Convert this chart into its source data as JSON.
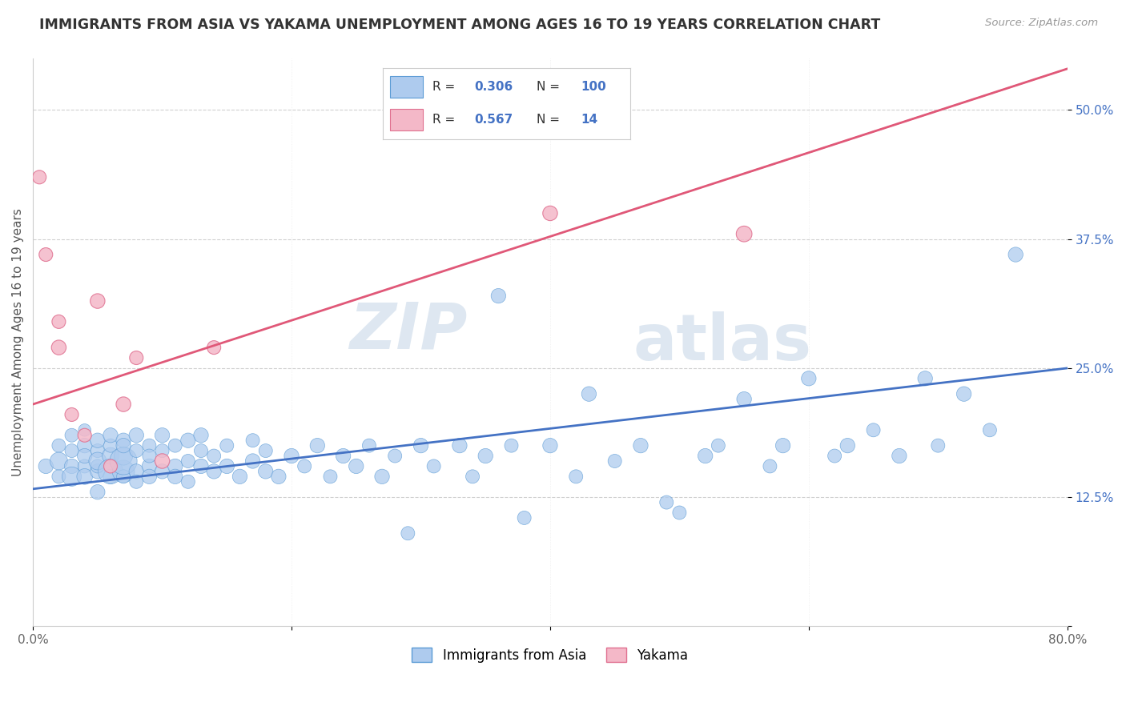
{
  "title": "IMMIGRANTS FROM ASIA VS YAKAMA UNEMPLOYMENT AMONG AGES 16 TO 19 YEARS CORRELATION CHART",
  "source": "Source: ZipAtlas.com",
  "ylabel": "Unemployment Among Ages 16 to 19 years",
  "xlim": [
    0.0,
    0.8
  ],
  "ylim": [
    0.0,
    0.55
  ],
  "xticks": [
    0.0,
    0.2,
    0.4,
    0.6,
    0.8
  ],
  "xticklabels": [
    "0.0%",
    "",
    "",
    "",
    "80.0%"
  ],
  "yticks": [
    0.0,
    0.125,
    0.25,
    0.375,
    0.5
  ],
  "yticklabels": [
    "",
    "12.5%",
    "25.0%",
    "37.5%",
    "50.0%"
  ],
  "blue_R": 0.306,
  "blue_N": 100,
  "pink_R": 0.567,
  "pink_N": 14,
  "watermark_zip": "ZIP",
  "watermark_atlas": "atlas",
  "blue_color": "#aecbee",
  "blue_edge_color": "#5b9bd5",
  "blue_line_color": "#4472c4",
  "pink_color": "#f4b8c8",
  "pink_edge_color": "#e07090",
  "pink_line_color": "#e05878",
  "legend_label_blue": "Immigrants from Asia",
  "legend_label_pink": "Yakama",
  "blue_line_x0": 0.0,
  "blue_line_y0": 0.133,
  "blue_line_x1": 0.8,
  "blue_line_y1": 0.25,
  "pink_line_x0": 0.0,
  "pink_line_y0": 0.215,
  "pink_line_x1": 0.8,
  "pink_line_y1": 0.54,
  "background_color": "#ffffff",
  "grid_color": "#d0d0d0",
  "blue_scatter_x": [
    0.01,
    0.02,
    0.02,
    0.02,
    0.03,
    0.03,
    0.03,
    0.03,
    0.04,
    0.04,
    0.04,
    0.04,
    0.04,
    0.05,
    0.05,
    0.05,
    0.05,
    0.05,
    0.05,
    0.06,
    0.06,
    0.06,
    0.06,
    0.06,
    0.07,
    0.07,
    0.07,
    0.07,
    0.07,
    0.07,
    0.08,
    0.08,
    0.08,
    0.08,
    0.09,
    0.09,
    0.09,
    0.09,
    0.1,
    0.1,
    0.1,
    0.11,
    0.11,
    0.11,
    0.12,
    0.12,
    0.12,
    0.13,
    0.13,
    0.13,
    0.14,
    0.14,
    0.15,
    0.15,
    0.16,
    0.17,
    0.17,
    0.18,
    0.18,
    0.19,
    0.2,
    0.21,
    0.22,
    0.23,
    0.24,
    0.25,
    0.26,
    0.27,
    0.28,
    0.29,
    0.3,
    0.31,
    0.33,
    0.34,
    0.35,
    0.36,
    0.37,
    0.38,
    0.4,
    0.42,
    0.43,
    0.45,
    0.47,
    0.49,
    0.5,
    0.52,
    0.53,
    0.55,
    0.57,
    0.58,
    0.6,
    0.62,
    0.63,
    0.65,
    0.67,
    0.69,
    0.7,
    0.72,
    0.74,
    0.76
  ],
  "blue_scatter_y": [
    0.155,
    0.175,
    0.145,
    0.16,
    0.185,
    0.155,
    0.17,
    0.145,
    0.155,
    0.175,
    0.145,
    0.165,
    0.19,
    0.15,
    0.17,
    0.13,
    0.155,
    0.18,
    0.16,
    0.145,
    0.165,
    0.175,
    0.15,
    0.185,
    0.15,
    0.165,
    0.18,
    0.145,
    0.16,
    0.175,
    0.15,
    0.17,
    0.185,
    0.14,
    0.155,
    0.175,
    0.145,
    0.165,
    0.15,
    0.17,
    0.185,
    0.155,
    0.175,
    0.145,
    0.16,
    0.18,
    0.14,
    0.155,
    0.17,
    0.185,
    0.15,
    0.165,
    0.155,
    0.175,
    0.145,
    0.16,
    0.18,
    0.15,
    0.17,
    0.145,
    0.165,
    0.155,
    0.175,
    0.145,
    0.165,
    0.155,
    0.175,
    0.145,
    0.165,
    0.09,
    0.175,
    0.155,
    0.175,
    0.145,
    0.165,
    0.32,
    0.175,
    0.105,
    0.175,
    0.145,
    0.225,
    0.16,
    0.175,
    0.12,
    0.11,
    0.165,
    0.175,
    0.22,
    0.155,
    0.175,
    0.24,
    0.165,
    0.175,
    0.19,
    0.165,
    0.24,
    0.175,
    0.225,
    0.19,
    0.36
  ],
  "blue_scatter_sizes": [
    35,
    30,
    30,
    50,
    30,
    35,
    30,
    60,
    30,
    35,
    40,
    35,
    25,
    35,
    30,
    35,
    30,
    35,
    50,
    35,
    45,
    30,
    100,
    35,
    80,
    55,
    35,
    30,
    120,
    35,
    35,
    30,
    35,
    30,
    35,
    30,
    35,
    30,
    35,
    30,
    35,
    35,
    30,
    35,
    30,
    35,
    30,
    35,
    30,
    35,
    35,
    30,
    35,
    30,
    35,
    35,
    30,
    35,
    30,
    35,
    35,
    30,
    35,
    30,
    35,
    35,
    30,
    35,
    30,
    30,
    35,
    30,
    35,
    30,
    35,
    35,
    30,
    30,
    35,
    30,
    35,
    30,
    35,
    30,
    30,
    35,
    30,
    35,
    30,
    35,
    35,
    30,
    35,
    30,
    35,
    35,
    30,
    35,
    30,
    35
  ],
  "pink_scatter_x": [
    0.005,
    0.01,
    0.02,
    0.02,
    0.03,
    0.04,
    0.05,
    0.06,
    0.07,
    0.08,
    0.1,
    0.14,
    0.4,
    0.55
  ],
  "pink_scatter_y": [
    0.435,
    0.36,
    0.295,
    0.27,
    0.205,
    0.185,
    0.315,
    0.155,
    0.215,
    0.26,
    0.16,
    0.27,
    0.4,
    0.38
  ],
  "pink_scatter_sizes": [
    30,
    30,
    30,
    35,
    30,
    30,
    35,
    30,
    35,
    30,
    35,
    30,
    35,
    40
  ]
}
